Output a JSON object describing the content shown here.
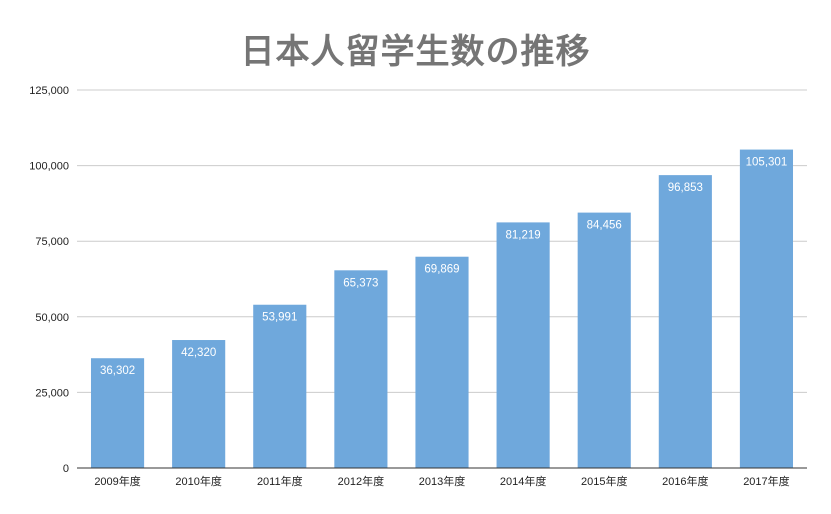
{
  "chart_data": {
    "type": "bar",
    "title": "日本人留学生数の推移",
    "xlabel": "",
    "ylabel": "",
    "categories": [
      "2009年度",
      "2010年度",
      "2011年度",
      "2012年度",
      "2013年度",
      "2014年度",
      "2015年度",
      "2016年度",
      "2017年度"
    ],
    "values": [
      36302,
      42320,
      53991,
      65373,
      69869,
      81219,
      84456,
      96853,
      105301
    ],
    "data_labels": [
      "36,302",
      "42,320",
      "53,991",
      "65,373",
      "69,869",
      "81,219",
      "84,456",
      "96,853",
      "105,301"
    ],
    "ylim": [
      0,
      125000
    ],
    "yticks": [
      0,
      25000,
      50000,
      75000,
      100000,
      125000
    ],
    "ytick_labels": [
      "0",
      "25,000",
      "50,000",
      "75,000",
      "100,000",
      "125,000"
    ],
    "grid": true,
    "legend": "none",
    "bar_color": "#6fa8dc",
    "grid_color": "#cccccc",
    "axis_color": "#333333",
    "label_color": "#ffffff",
    "title_color": "#757575"
  }
}
